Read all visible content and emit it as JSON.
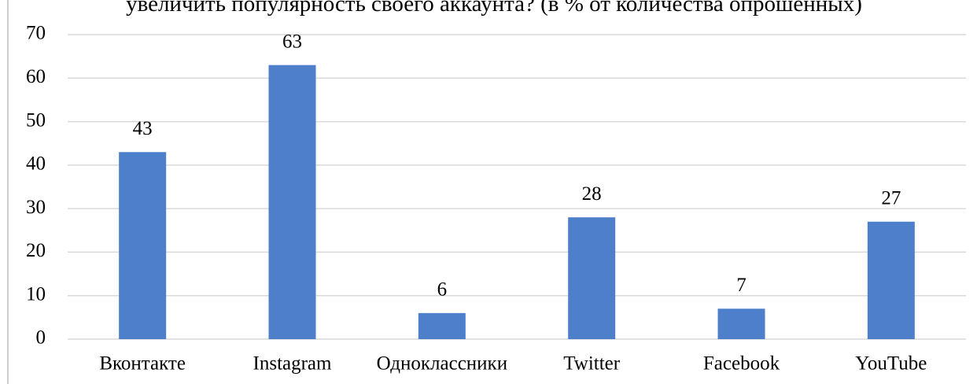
{
  "chart_data": {
    "type": "bar",
    "title": "увеличить популярность своего аккаунта? (в % от количества опрошенных)",
    "categories": [
      "Вконтакте",
      "Instagram",
      "Одноклассники",
      "Twitter",
      "Facebook",
      "YouTube"
    ],
    "values": [
      43,
      63,
      6,
      28,
      7,
      27
    ],
    "color": "#4e7fcb",
    "ylim": [
      0,
      70
    ],
    "yticks": [
      0,
      10,
      20,
      30,
      40,
      50,
      60,
      70
    ],
    "grid": true
  }
}
